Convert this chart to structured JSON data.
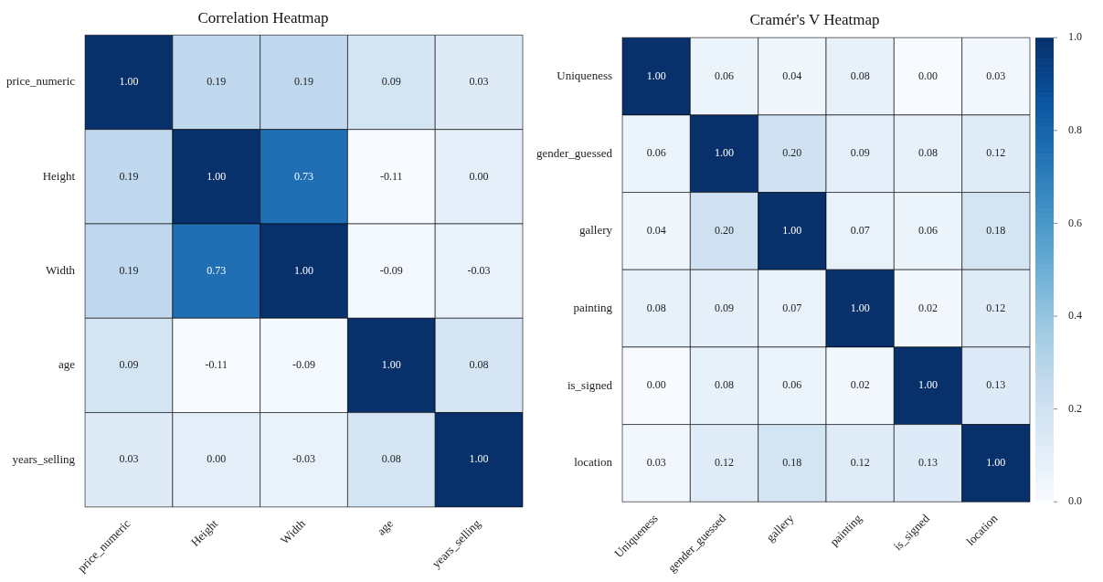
{
  "chart_data": [
    {
      "type": "heatmap",
      "title": "Correlation Heatmap",
      "categories": [
        "price_numeric",
        "Height",
        "Width",
        "age",
        "years_selling"
      ],
      "y_categories": [
        "price_numeric",
        "Height",
        "Width",
        "age",
        "years_selling"
      ],
      "cells": [
        [
          1.0,
          0.19,
          0.19,
          0.09,
          0.03
        ],
        [
          0.19,
          1.0,
          0.73,
          -0.11,
          0.0
        ],
        [
          0.19,
          0.73,
          1.0,
          -0.09,
          -0.03
        ],
        [
          0.09,
          -0.11,
          -0.09,
          1.0,
          0.08
        ],
        [
          0.03,
          0.0,
          -0.03,
          0.08,
          1.0
        ]
      ],
      "cell_labels": [
        [
          "1.00",
          "0.19",
          "0.19",
          "0.09",
          "0.03"
        ],
        [
          "0.19",
          "1.00",
          "0.73",
          "-0.11",
          "0.00"
        ],
        [
          "0.19",
          "0.73",
          "1.00",
          "-0.09",
          "-0.03"
        ],
        [
          "0.09",
          "-0.11",
          "-0.09",
          "1.00",
          "0.08"
        ],
        [
          "0.03",
          "0.00",
          "-0.03",
          "0.08",
          "1.00"
        ]
      ]
    },
    {
      "type": "heatmap",
      "title": "Cramér's V Heatmap",
      "categories": [
        "Uniqueness",
        "gender_guessed",
        "gallery",
        "painting",
        "is_signed",
        "location"
      ],
      "y_categories": [
        "Uniqueness",
        "gender_guessed",
        "gallery",
        "painting",
        "is_signed",
        "location"
      ],
      "cells": [
        [
          1.0,
          0.06,
          0.04,
          0.08,
          0.0,
          0.03
        ],
        [
          0.06,
          1.0,
          0.2,
          0.09,
          0.08,
          0.12
        ],
        [
          0.04,
          0.2,
          1.0,
          0.07,
          0.06,
          0.18
        ],
        [
          0.08,
          0.09,
          0.07,
          1.0,
          0.02,
          0.12
        ],
        [
          0.0,
          0.08,
          0.06,
          0.02,
          1.0,
          0.13
        ],
        [
          0.03,
          0.12,
          0.18,
          0.12,
          0.13,
          1.0
        ]
      ],
      "cell_labels": [
        [
          "1.00",
          "0.06",
          "0.04",
          "0.08",
          "0.00",
          "0.03"
        ],
        [
          "0.06",
          "1.00",
          "0.20",
          "0.09",
          "0.08",
          "0.12"
        ],
        [
          "0.04",
          "0.20",
          "1.00",
          "0.07",
          "0.06",
          "0.18"
        ],
        [
          "0.08",
          "0.09",
          "0.07",
          "1.00",
          "0.02",
          "0.12"
        ],
        [
          "0.00",
          "0.08",
          "0.06",
          "0.02",
          "1.00",
          "0.13"
        ],
        [
          "0.03",
          "0.12",
          "0.18",
          "0.12",
          "0.13",
          "1.00"
        ]
      ],
      "clim": [
        0,
        1
      ],
      "cticks": [
        {
          "value": 0,
          "label": "0.0"
        },
        {
          "value": 0.2,
          "label": "0.2"
        },
        {
          "value": 0.4,
          "label": "0.4"
        },
        {
          "value": 0.6,
          "label": "0.6"
        },
        {
          "value": 0.8,
          "label": "0.8"
        },
        {
          "value": 1,
          "label": "1.0"
        }
      ]
    }
  ]
}
